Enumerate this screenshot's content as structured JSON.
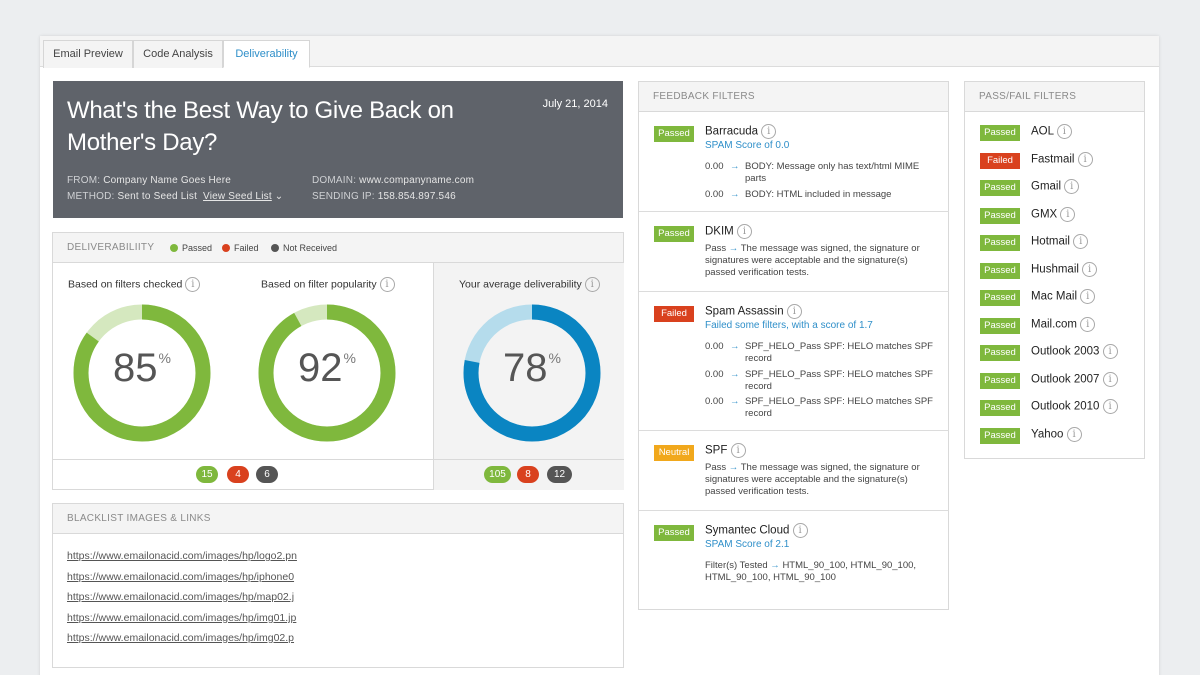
{
  "tabs": [
    {
      "label": "Email Preview"
    },
    {
      "label": "Code Analysis"
    },
    {
      "label": "Deliverability"
    }
  ],
  "hero": {
    "title": "What's the Best Way to Give Back on Mother's Day?",
    "date": "July 21, 2014",
    "from_label": "FROM:",
    "from_value": "Company Name Goes Here",
    "method_label": "METHOD:",
    "method_value": "Sent to Seed List",
    "view_seed_list": "View Seed List",
    "domain_label": "DOMAIN:",
    "domain_value": "www.companyname.com",
    "ip_label": "SENDING IP:",
    "ip_value": "158.854.897.546"
  },
  "deliverability": {
    "heading": "DELIVERABILIITY",
    "legend": [
      {
        "label": "Passed",
        "color": "#7fb83d"
      },
      {
        "label": "Failed",
        "color": "#d9411e"
      },
      {
        "label": "Not Received",
        "color": "#555555"
      }
    ],
    "gauges": [
      {
        "label": "Based on filters checked",
        "value": "85",
        "percent": 85,
        "unit": "%",
        "color": "#7fb83d",
        "track": "#d5e8bf"
      },
      {
        "label": "Based on filter popularity",
        "value": "92",
        "percent": 92,
        "unit": "%",
        "color": "#7fb83d",
        "track": "#d5e8bf"
      },
      {
        "label": "Your average deliverability",
        "value": "78",
        "percent": 78,
        "unit": "%",
        "color": "#0a85c2",
        "track": "#b5dcec"
      }
    ],
    "counts_left": {
      "passed": "15",
      "failed": "4",
      "not_received": "6"
    },
    "counts_right": {
      "passed": "105",
      "failed": "8",
      "not_received": "12"
    }
  },
  "blacklist": {
    "heading": "BLACKLIST IMAGES & LINKS",
    "links": [
      "https://www.emailonacid.com/images/hp/logo2.pn",
      "https://www.emailonacid.com/images/hp/iphone0",
      "https://www.emailonacid.com/images/hp/map02.j",
      "https://www.emailonacid.com/images/hp/img01.jp",
      "https://www.emailonacid.com/images/hp/img02.p"
    ]
  },
  "feedback": {
    "heading": "FEEDBACK FILTERS",
    "items": [
      {
        "status": "Passed",
        "name": "Barracuda",
        "sub": "SPAM Score of 0.0",
        "rows": [
          {
            "score": "0.00",
            "arrow": "→",
            "text": "BODY: Message only has text/html MIME parts"
          },
          {
            "score": "0.00",
            "arrow": "→",
            "text": "BODY: HTML included in message"
          }
        ]
      },
      {
        "status": "Passed",
        "name": "DKIM",
        "desc_label": "Pass",
        "arrow": "→",
        "desc": "The message was signed, the signature or signatures were acceptable and the signature(s) passed verification tests."
      },
      {
        "status": "Failed",
        "name": "Spam Assassin",
        "sub": "Failed some filters, with a score of 1.7",
        "rows": [
          {
            "score": "0.00",
            "arrow": "→",
            "text": "SPF_HELO_Pass SPF: HELO matches SPF record"
          },
          {
            "score": "0.00",
            "arrow": "→",
            "text": "SPF_HELO_Pass SPF: HELO matches SPF record"
          },
          {
            "score": "0.00",
            "arrow": "→",
            "text": "SPF_HELO_Pass SPF: HELO matches SPF record"
          }
        ]
      },
      {
        "status": "Neutral",
        "name": "SPF",
        "desc_label": "Pass",
        "arrow": "→",
        "desc": "The message was signed, the signature or signatures were acceptable and the signature(s) passed verification tests."
      },
      {
        "status": "Passed",
        "name": "Symantec Cloud",
        "sub": "SPAM Score of 2.1",
        "desc_label": "Filter(s) Tested",
        "arrow": "→",
        "desc": "HTML_90_100, HTML_90_100, HTML_90_100, HTML_90_100"
      }
    ]
  },
  "passfail": {
    "heading": "PASS/FAIL FILTERS",
    "items": [
      {
        "status": "Passed",
        "name": "AOL"
      },
      {
        "status": "Failed",
        "name": "Fastmail"
      },
      {
        "status": "Passed",
        "name": "Gmail"
      },
      {
        "status": "Passed",
        "name": "GMX"
      },
      {
        "status": "Passed",
        "name": "Hotmail"
      },
      {
        "status": "Passed",
        "name": "Hushmail"
      },
      {
        "status": "Passed",
        "name": "Mac Mail"
      },
      {
        "status": "Passed",
        "name": "Mail.com"
      },
      {
        "status": "Passed",
        "name": "Outlook 2003"
      },
      {
        "status": "Passed",
        "name": "Outlook 2007"
      },
      {
        "status": "Passed",
        "name": "Outlook 2010"
      },
      {
        "status": "Passed",
        "name": "Yahoo"
      }
    ]
  },
  "icons": {
    "info": "info-icon",
    "info_glyph": "i",
    "caret": "⌄"
  }
}
